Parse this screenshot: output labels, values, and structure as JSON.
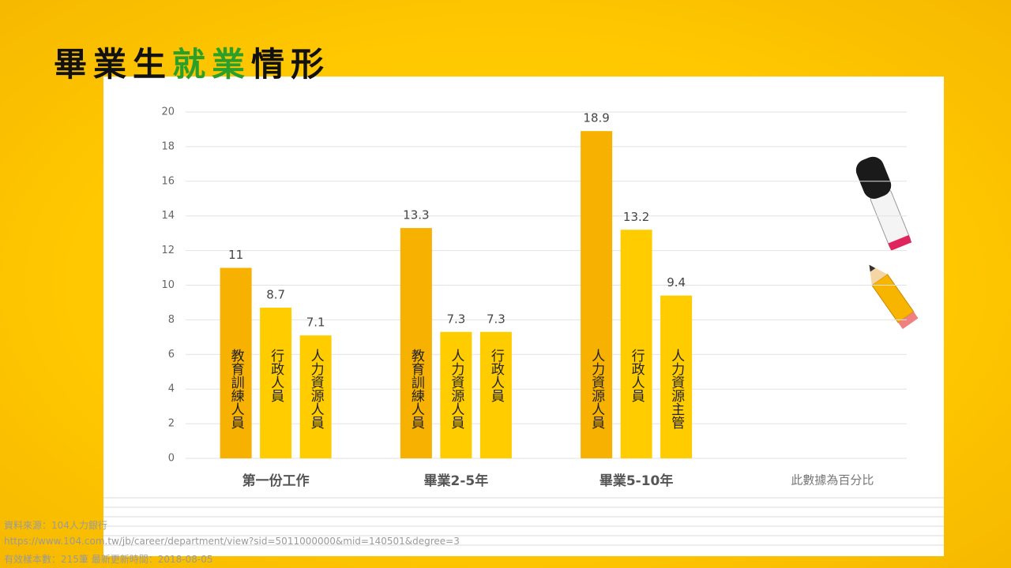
{
  "title": [
    {
      "text": "畢業生",
      "color": "#111111"
    },
    {
      "text": "就業",
      "color": "#2aa02a"
    },
    {
      "text": "情形",
      "color": "#111111"
    }
  ],
  "chart_data": {
    "type": "bar",
    "groups": [
      {
        "name": "第一份工作",
        "bars": [
          {
            "label": "教育訓練人員",
            "value": 11,
            "color": "#f7b100"
          },
          {
            "label": "行政人員",
            "value": 8.7,
            "color": "#ffcc00"
          },
          {
            "label": "人力資源人員",
            "value": 7.1,
            "color": "#ffcc00"
          }
        ]
      },
      {
        "name": "畢業2-5年",
        "bars": [
          {
            "label": "教育訓練人員",
            "value": 13.3,
            "color": "#f7b100"
          },
          {
            "label": "人力資源人員",
            "value": 7.3,
            "color": "#ffcc00"
          },
          {
            "label": "行政人員",
            "value": 7.3,
            "color": "#ffcc00"
          }
        ]
      },
      {
        "name": "畢業5-10年",
        "bars": [
          {
            "label": "人力資源人員",
            "value": 18.9,
            "color": "#f7b100"
          },
          {
            "label": "行政人員",
            "value": 13.2,
            "color": "#ffcc00"
          },
          {
            "label": "人力資源主管",
            "value": 9.4,
            "color": "#ffcc00"
          }
        ]
      }
    ],
    "note": "此數據為百分比",
    "ylim": [
      0,
      20
    ],
    "yticks": [
      0,
      2,
      4,
      6,
      8,
      10,
      12,
      14,
      16,
      18,
      20
    ],
    "grid": true
  },
  "footer": [
    "資料來源：104人力銀行",
    "https://www.104.com.tw/jb/career/department/view?sid=5011000000&mid=140501&degree=3",
    "有效樣本數：215筆  最新更新時間：2018-08-05"
  ]
}
